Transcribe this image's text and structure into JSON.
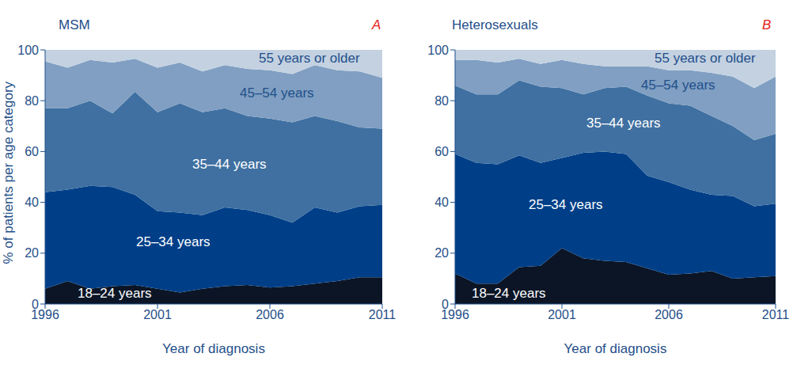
{
  "chart_data": [
    {
      "type": "area",
      "stacked": true,
      "title": "MSM",
      "annotation": "A",
      "x_label": "Year of diagnosis",
      "y_label": "% of patients per age category",
      "grid": false,
      "x": [
        1996,
        1997,
        1998,
        1999,
        2000,
        2001,
        2002,
        2003,
        2004,
        2005,
        2006,
        2007,
        2008,
        2009,
        2010,
        2011
      ],
      "xlim": [
        1996,
        2011
      ],
      "xticks": [
        1996,
        2001,
        2006,
        2011
      ],
      "ylim": [
        0,
        100
      ],
      "yticks": [
        0,
        20,
        40,
        60,
        80,
        100
      ],
      "series": [
        {
          "name": "18–24 years",
          "color": "#0b1526",
          "values": [
            6,
            9,
            6,
            7,
            7.5,
            6,
            4.5,
            6,
            7,
            7.5,
            6.5,
            7,
            8,
            9,
            10.5,
            10.5
          ]
        },
        {
          "name": "25–34 years",
          "color": "#003f88",
          "values": [
            38,
            36,
            40.5,
            39,
            35.5,
            30.5,
            31.5,
            29,
            31,
            29.5,
            28.5,
            25,
            30,
            27,
            28,
            28.5
          ]
        },
        {
          "name": "35–44 years",
          "color": "#3f70a1",
          "values": [
            33,
            32,
            33.5,
            29,
            40.5,
            39,
            43,
            40.5,
            39,
            37,
            38,
            39.5,
            36,
            36,
            31,
            30
          ]
        },
        {
          "name": "45–54 years",
          "color": "#809fc2",
          "values": [
            18.5,
            16,
            16,
            20,
            13,
            17.5,
            16,
            16,
            17,
            18.5,
            19,
            19,
            20,
            20,
            22,
            20
          ]
        },
        {
          "name": "55 years or older",
          "color": "#c3d1e1",
          "values": [
            4.5,
            7,
            4,
            5,
            3.5,
            7,
            5,
            8.5,
            6,
            7.5,
            8,
            9.5,
            6,
            8,
            8.5,
            11
          ]
        }
      ]
    },
    {
      "type": "area",
      "stacked": true,
      "title": "Heterosexuals",
      "annotation": "B",
      "x_label": "Year of diagnosis",
      "grid": false,
      "x": [
        1996,
        1997,
        1998,
        1999,
        2000,
        2001,
        2002,
        2003,
        2004,
        2005,
        2006,
        2007,
        2008,
        2009,
        2010,
        2011
      ],
      "xlim": [
        1996,
        2011
      ],
      "xticks": [
        1996,
        2001,
        2006,
        2011
      ],
      "ylim": [
        0,
        100
      ],
      "yticks": [
        0,
        20,
        40,
        60,
        80,
        100
      ],
      "series": [
        {
          "name": "18–24 years",
          "color": "#0b1526",
          "values": [
            12,
            8,
            8,
            14.5,
            15,
            22,
            18,
            17,
            16.5,
            14,
            11.5,
            12,
            13,
            10,
            10.5,
            11
          ]
        },
        {
          "name": "25–34 years",
          "color": "#003f88",
          "values": [
            47,
            47.5,
            47,
            44,
            40.5,
            35.5,
            41.5,
            43,
            42.5,
            36.5,
            36.5,
            33,
            30,
            32.5,
            28,
            28.5
          ]
        },
        {
          "name": "35–44 years",
          "color": "#3f70a1",
          "values": [
            27,
            27,
            27.5,
            29.5,
            30,
            27.5,
            23,
            25,
            26.5,
            31.5,
            31,
            33,
            31,
            27.5,
            26,
            27.5
          ]
        },
        {
          "name": "45–54 years",
          "color": "#809fc2",
          "values": [
            10,
            13.5,
            12.5,
            8.5,
            9,
            11,
            12,
            8.5,
            8,
            11.5,
            13,
            14,
            17,
            19.5,
            20.5,
            22.5
          ]
        },
        {
          "name": "55 years or older",
          "color": "#c3d1e1",
          "values": [
            4,
            4,
            5,
            3.5,
            5.5,
            4,
            5.5,
            6.5,
            6.5,
            6.5,
            8,
            8,
            9,
            10.5,
            15,
            10.5
          ]
        }
      ]
    }
  ]
}
